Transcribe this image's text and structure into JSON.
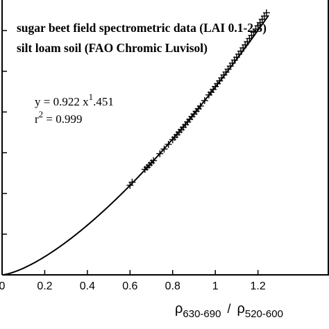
{
  "chart_data": {
    "type": "scatter",
    "annotations": {
      "line1": "sugar beet field spectrometric data (LAI  0.1-2.3)",
      "line2": "silt loam soil (FAO Chromic Luvisol)",
      "equation_prefix": "y = 0.922 x",
      "equation_exponent": "1",
      "equation_suffix": ".451",
      "r2_prefix": "r",
      "r2_exponent": "2",
      "r2_suffix": " = 0.999"
    },
    "xlabel": {
      "rho1": "ρ",
      "sub1": "630-690",
      "slash": "/",
      "rho2": "ρ",
      "sub2": "520-600"
    },
    "xlim": [
      0,
      1.25
    ],
    "ylim": [
      0,
      1.35
    ],
    "x_ticks": [
      0,
      0.2,
      0.4,
      0.6,
      0.8,
      1,
      1.2
    ],
    "x_tick_labels": [
      "0",
      "0.2",
      "0.4",
      "0.6",
      "0.8",
      "1",
      "1.2"
    ],
    "y_ticks": [
      0.2,
      0.4,
      0.6,
      0.8,
      1.0,
      1.2
    ],
    "fit": {
      "a": 0.922,
      "b": 1.451,
      "x_range": [
        0,
        1.25
      ]
    },
    "series": [
      {
        "marker": "plus",
        "x": [
          0.6,
          0.61,
          0.67,
          0.68,
          0.69,
          0.7,
          0.71,
          0.74,
          0.76,
          0.78,
          0.8,
          0.81,
          0.82,
          0.83,
          0.84,
          0.85,
          0.86,
          0.87,
          0.88,
          0.89,
          0.9,
          0.91,
          0.92,
          0.93,
          0.95,
          0.97,
          0.98,
          0.99,
          1.0,
          1.01,
          1.02,
          1.03,
          1.04,
          1.05,
          1.06,
          1.07,
          1.08,
          1.09,
          1.1,
          1.11,
          1.12,
          1.13,
          1.14,
          1.15,
          1.16,
          1.17,
          1.18,
          1.19,
          1.2,
          1.21,
          1.22,
          1.23,
          1.24
        ],
        "y": [
          0.44,
          0.455,
          0.518,
          0.528,
          0.539,
          0.55,
          0.561,
          0.595,
          0.618,
          0.641,
          0.664,
          0.676,
          0.688,
          0.701,
          0.713,
          0.725,
          0.738,
          0.751,
          0.764,
          0.777,
          0.79,
          0.803,
          0.816,
          0.829,
          0.856,
          0.884,
          0.897,
          0.911,
          0.925,
          0.939,
          0.953,
          0.967,
          0.982,
          0.996,
          1.01,
          1.025,
          1.04,
          1.055,
          1.069,
          1.084,
          1.099,
          1.115,
          1.13,
          1.145,
          1.161,
          1.176,
          1.192,
          1.207,
          1.223,
          1.239,
          1.255,
          1.271,
          1.287
        ]
      }
    ]
  }
}
